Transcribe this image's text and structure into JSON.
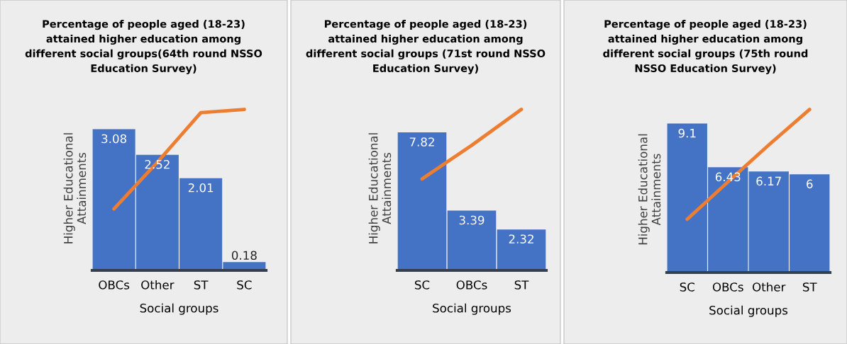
{
  "chart_data": [
    {
      "type": "bar",
      "title": "Percentage of people aged (18-23)\nattained higher education among\ndifferent social groups(64th round NSSO\nEducation Survey)",
      "xlabel": "Social groups",
      "ylabel": "Higher Educational\nAttainments",
      "categories": [
        "OBCs",
        "Other",
        "ST",
        "SC"
      ],
      "tick_labels": "x",
      "legend": false,
      "grid": false,
      "series": [
        {
          "color": "#4472c4",
          "values": [
            3.08,
            2.52,
            2.01,
            0.18
          ],
          "value_labels": [
            "3.08",
            "2.52",
            "2.01",
            "0.18"
          ]
        },
        {
          "type": "line",
          "color": "#ed7d31",
          "values": [
            1.34,
            2.36,
            3.44,
            3.51
          ]
        }
      ]
    },
    {
      "type": "bar",
      "title": "Percentage of people aged (18-23)\nattained higher education among\ndifferent social groups (71st round NSSO\nEducation Survey)",
      "xlabel": "Social groups",
      "ylabel": "Higher Educational\nAttainments",
      "categories": [
        "SC",
        "OBCs",
        "ST"
      ],
      "tick_labels": "x",
      "legend": false,
      "grid": false,
      "series": [
        {
          "color": "#4472c4",
          "values": [
            7.82,
            3.39,
            2.32
          ],
          "value_labels": [
            "7.82",
            "3.39",
            "2.32"
          ]
        },
        {
          "type": "line",
          "color": "#ed7d31",
          "values": [
            5.18,
            7.09,
            9.12
          ]
        }
      ]
    },
    {
      "type": "bar",
      "title": "Percentage of people aged (18-23)\nattained higher education among\ndifferent social groups (75th round\nNSSO Education Survey)",
      "xlabel": "Social groups",
      "ylabel": "Higher Educational\nAttainments",
      "categories": [
        "SC",
        "OBCs",
        "Other",
        "ST"
      ],
      "tick_labels": "x",
      "legend": false,
      "grid": false,
      "series": [
        {
          "color": "#4472c4",
          "values": [
            9.1,
            6.43,
            6.17,
            6
          ],
          "value_labels": [
            "9.1",
            "6.43",
            "6.17",
            "6"
          ]
        },
        {
          "type": "line",
          "color": "#ed7d31",
          "values": [
            3.25,
            5.54,
            7.79,
            9.96
          ]
        }
      ]
    }
  ]
}
